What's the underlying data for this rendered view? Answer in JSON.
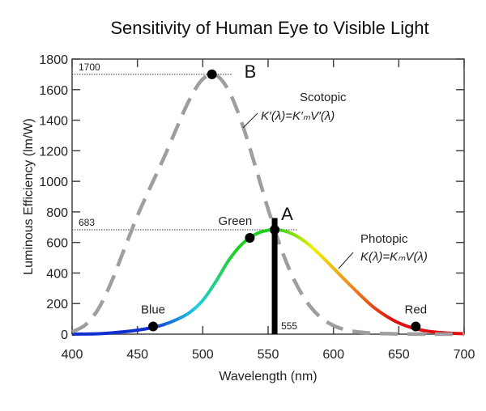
{
  "chart_data": {
    "type": "line",
    "title": "Sensitivity of Human Eye to Visible Light",
    "xlabel": "Wavelength (nm)",
    "ylabel": "Luminous Efficiency (lm/W)",
    "xlim": [
      400,
      700
    ],
    "ylim": [
      0,
      1800
    ],
    "xticks": [
      400,
      450,
      500,
      550,
      600,
      650,
      700
    ],
    "yticks": [
      0,
      200,
      400,
      600,
      800,
      1000,
      1200,
      1400,
      1600,
      1800
    ],
    "grid": false,
    "x": [
      400,
      410,
      420,
      430,
      440,
      450,
      460,
      470,
      480,
      490,
      500,
      510,
      520,
      530,
      540,
      550,
      560,
      570,
      580,
      590,
      600,
      610,
      620,
      630,
      640,
      650,
      660,
      670,
      680,
      690,
      700
    ],
    "series": [
      {
        "name": "Scotopic",
        "formula": "K′(λ)=K′ₘV′(λ)",
        "style": "dashed",
        "color": "#9e9e9e",
        "values": [
          16,
          59,
          164,
          340,
          558,
          774,
          964,
          1149,
          1348,
          1537,
          1669,
          1695,
          1590,
          1379,
          1105,
          818,
          559,
          354,
          206,
          111,
          56,
          27,
          13,
          6,
          3,
          1,
          0.5,
          0.3,
          0.1,
          0.1,
          0
        ]
      },
      {
        "name": "Photopic",
        "formula": "K(λ)=KₘV(λ)",
        "style": "spectral-gradient",
        "values": [
          0.3,
          0.8,
          2.7,
          7.9,
          15.7,
          26,
          41,
          62,
          95,
          142,
          221,
          344,
          485,
          589,
          652,
          680,
          680,
          650,
          594,
          517,
          431,
          344,
          260,
          181,
          120,
          73,
          42,
          22,
          12,
          6,
          3
        ]
      }
    ],
    "points": [
      {
        "label": "B",
        "x": 507,
        "y": 1700
      },
      {
        "label": "A",
        "x": 555,
        "y": 683
      },
      {
        "label": "Blue",
        "x": 462,
        "y": 50
      },
      {
        "label": "Green",
        "x": 536,
        "y": 630
      },
      {
        "label": "Red",
        "x": 663,
        "y": 50
      }
    ],
    "reference_lines": [
      {
        "label": "1700",
        "axis": "y",
        "value": 1700
      },
      {
        "label": "683",
        "axis": "y",
        "value": 683
      },
      {
        "label": "555",
        "axis": "x",
        "value": 555
      }
    ],
    "colors": {
      "blue": "#1030d0",
      "cyan": "#20d0e0",
      "green": "#20d020",
      "yellow": "#f0f000",
      "orange": "#f08020",
      "red": "#e01010"
    }
  }
}
